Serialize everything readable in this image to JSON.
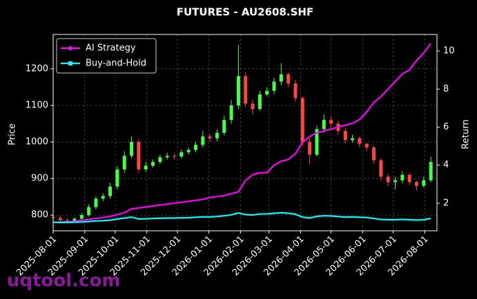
{
  "chart_data": {
    "type": "candlestick",
    "title": "FUTURES - AU2608.SHF",
    "ylabel": "Price",
    "y2label": "Return",
    "watermark": "uqtool.com",
    "x": [
      "2025-08-01",
      "2025-08-08",
      "2025-08-15",
      "2025-08-22",
      "2025-08-29",
      "2025-09-05",
      "2025-09-12",
      "2025-09-19",
      "2025-09-26",
      "2025-10-03",
      "2025-10-10",
      "2025-10-17",
      "2025-10-24",
      "2025-10-31",
      "2025-11-07",
      "2025-11-14",
      "2025-11-21",
      "2025-11-28",
      "2025-12-05",
      "2025-12-12",
      "2025-12-19",
      "2025-12-26",
      "2026-01-02",
      "2026-01-09",
      "2026-01-16",
      "2026-01-23",
      "2026-01-30",
      "2026-02-06",
      "2026-02-13",
      "2026-02-20",
      "2026-02-27",
      "2026-03-06",
      "2026-03-13",
      "2026-03-20",
      "2026-03-27",
      "2026-04-03",
      "2026-04-10",
      "2026-04-17",
      "2026-04-24",
      "2026-05-01",
      "2026-05-08",
      "2026-05-15",
      "2026-05-22",
      "2026-05-29",
      "2026-06-05",
      "2026-06-12",
      "2026-06-19",
      "2026-06-26",
      "2026-07-03",
      "2026-07-10",
      "2026-07-17",
      "2026-07-24",
      "2026-07-31",
      "2026-08-07"
    ],
    "open": [
      795,
      792,
      786,
      784,
      790,
      800,
      822,
      845,
      852,
      878,
      925,
      962,
      1000,
      925,
      935,
      945,
      958,
      962,
      960,
      972,
      978,
      992,
      1015,
      1010,
      1025,
      1060,
      1100,
      1180,
      1105,
      1090,
      1130,
      1140,
      1165,
      1185,
      1160,
      1120,
      1000,
      965,
      1035,
      1060,
      1050,
      1030,
      1005,
      1010,
      995,
      985,
      950,
      905,
      890,
      895,
      910,
      890,
      880,
      895
    ],
    "high": [
      800,
      798,
      792,
      794,
      806,
      830,
      852,
      860,
      888,
      935,
      975,
      1015,
      1008,
      945,
      952,
      965,
      970,
      968,
      980,
      985,
      1000,
      1030,
      1022,
      1035,
      1072,
      1115,
      1265,
      1190,
      1115,
      1140,
      1150,
      1175,
      1215,
      1190,
      1170,
      1125,
      1010,
      1045,
      1075,
      1070,
      1058,
      1038,
      1020,
      1015,
      998,
      990,
      955,
      912,
      905,
      920,
      915,
      895,
      905,
      960
    ],
    "low": [
      784,
      780,
      778,
      780,
      786,
      796,
      815,
      838,
      845,
      870,
      915,
      955,
      915,
      918,
      930,
      940,
      952,
      952,
      955,
      965,
      972,
      985,
      1000,
      1002,
      1018,
      1050,
      1090,
      1095,
      1075,
      1085,
      1125,
      1130,
      1155,
      1150,
      1110,
      990,
      940,
      960,
      1025,
      1040,
      1020,
      995,
      998,
      985,
      975,
      940,
      895,
      880,
      870,
      888,
      882,
      868,
      875,
      890
    ],
    "close": [
      792,
      786,
      784,
      790,
      800,
      822,
      845,
      852,
      878,
      925,
      962,
      1000,
      925,
      935,
      945,
      958,
      962,
      960,
      972,
      978,
      992,
      1015,
      1010,
      1025,
      1060,
      1100,
      1180,
      1105,
      1090,
      1130,
      1140,
      1165,
      1185,
      1160,
      1120,
      1000,
      965,
      1035,
      1060,
      1050,
      1030,
      1005,
      1010,
      995,
      985,
      950,
      905,
      890,
      895,
      910,
      890,
      880,
      895,
      945
    ],
    "up_color": "#44ff44",
    "down_color": "#ff4444",
    "series": [
      {
        "name": "AI Strategy",
        "color": "#ff00ff",
        "axis": "y2",
        "marker": "circle",
        "values": [
          1.0,
          1.0,
          1.02,
          1.05,
          1.1,
          1.15,
          1.2,
          1.25,
          1.3,
          1.4,
          1.5,
          1.7,
          1.75,
          1.8,
          1.85,
          1.9,
          1.95,
          2.0,
          2.05,
          2.1,
          2.15,
          2.2,
          2.3,
          2.35,
          2.4,
          2.5,
          2.6,
          3.2,
          3.5,
          3.6,
          3.6,
          4.0,
          4.2,
          4.3,
          4.6,
          5.2,
          5.5,
          5.7,
          5.8,
          5.9,
          6.0,
          6.1,
          6.2,
          6.4,
          6.8,
          7.3,
          7.6,
          8.0,
          8.4,
          8.8,
          9.0,
          9.5,
          9.9,
          10.4
        ]
      },
      {
        "name": "Buy-and-Hold",
        "color": "#00ffff",
        "axis": "y2",
        "marker": "square",
        "values": [
          1.0,
          0.99,
          0.99,
          1.0,
          1.01,
          1.04,
          1.07,
          1.08,
          1.11,
          1.17,
          1.22,
          1.27,
          1.17,
          1.18,
          1.2,
          1.21,
          1.22,
          1.22,
          1.23,
          1.24,
          1.26,
          1.28,
          1.28,
          1.3,
          1.34,
          1.39,
          1.49,
          1.4,
          1.38,
          1.43,
          1.44,
          1.47,
          1.5,
          1.47,
          1.42,
          1.27,
          1.22,
          1.31,
          1.34,
          1.33,
          1.3,
          1.27,
          1.28,
          1.26,
          1.25,
          1.2,
          1.15,
          1.13,
          1.13,
          1.15,
          1.13,
          1.11,
          1.13,
          1.2
        ]
      }
    ],
    "xlim": [
      "2025-08-01",
      "2026-08-13"
    ],
    "xticks": [
      "2025-08-01",
      "2025-09-01",
      "2025-10-01",
      "2025-11-01",
      "2025-12-01",
      "2026-01-01",
      "2026-02-01",
      "2026-03-01",
      "2026-04-01",
      "2026-05-01",
      "2026-06-01",
      "2026-07-01",
      "2026-08-01"
    ],
    "ylim": [
      757,
      1294
    ],
    "yticks": [
      800,
      900,
      1000,
      1100,
      1200
    ],
    "y2lim": [
      0.55,
      10.87
    ],
    "y2ticks": [
      2,
      4,
      6,
      8,
      10
    ],
    "grid": true,
    "legend": "upper left"
  }
}
